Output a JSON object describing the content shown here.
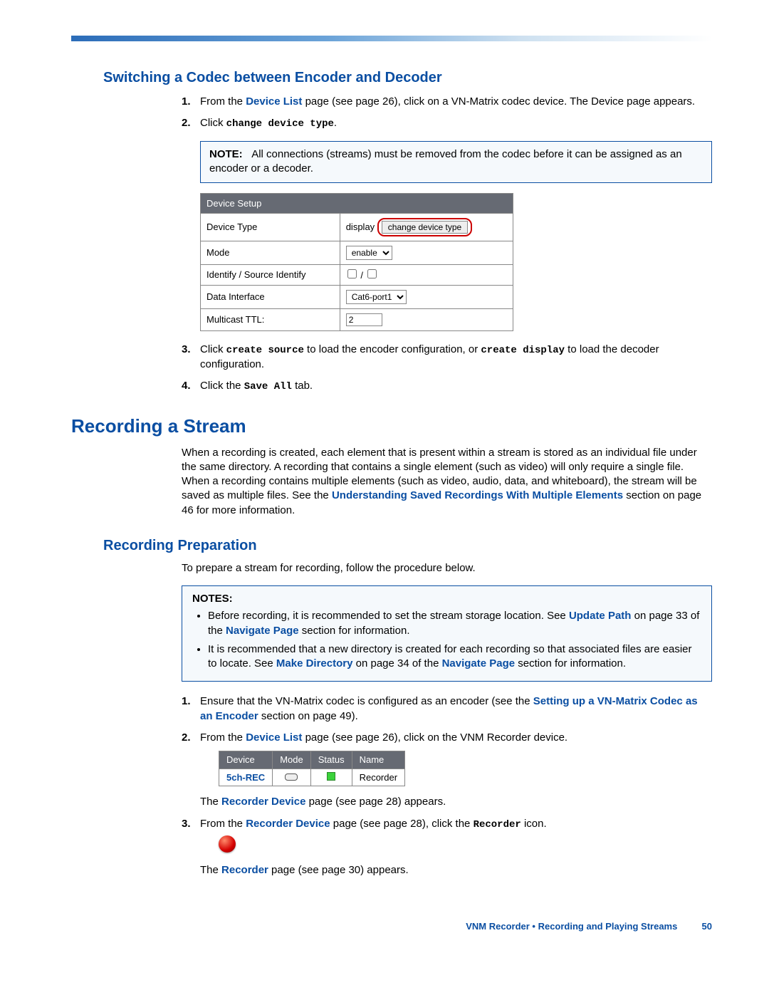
{
  "colors": {
    "heading_blue": "#0a4ea2",
    "link_blue": "#0a4ea2",
    "note_border": "#0a4ea2",
    "note_bg": "#f5f9fc",
    "table_header_bg": "#666a73",
    "table_header_fg": "#ffffff",
    "highlight_border": "#c00",
    "status_green": "#3bd23b",
    "sphere_red": "#d40000"
  },
  "section1": {
    "title": "Switching a Codec between Encoder and Decoder",
    "step1_pre": "From the ",
    "step1_link": "Device List",
    "step1_mid": " page (see page 26), click on a VN-Matrix codec device. The Device page appears.",
    "step2_pre": "Click ",
    "step2_cmd": "change device type",
    "step2_post": ".",
    "note_label": "NOTE:",
    "note_text": "All connections (streams) must be removed from the codec before it can be assigned as an encoder or a decoder.",
    "step3_pre": "Click ",
    "step3_cmd1": "create source",
    "step3_mid": " to load the encoder configuration, or ",
    "step3_cmd2": "create display",
    "step3_post": " to load the decoder configuration.",
    "step4_pre": "Click the ",
    "step4_cmd": "Save All",
    "step4_post": " tab."
  },
  "device_setup_table": {
    "header": "Device Setup",
    "rows": [
      {
        "label": "Device Type",
        "value_text": "display",
        "button": "change device type"
      },
      {
        "label": "Mode",
        "select_value": "enable"
      },
      {
        "label": "Identify / Source Identify",
        "checkboxes": true,
        "sep": " / "
      },
      {
        "label": "Data Interface",
        "select_value": "Cat6-port1"
      },
      {
        "label": "Multicast TTL:",
        "input_value": "2"
      }
    ]
  },
  "section2": {
    "title": "Recording a Stream",
    "intro_pre": "When a recording is created, each element that is present within a stream is stored as an individual file under the same directory. A recording that contains a single element (such as video) will only require a single file. When a recording contains multiple elements (such as video, audio, data, and whiteboard), the stream will be saved as multiple files. See the ",
    "intro_link": "Understanding Saved Recordings With Multiple Elements",
    "intro_post": " section on page 46 for more information."
  },
  "section3": {
    "title": "Recording Preparation",
    "intro": "To prepare a stream for recording, follow the procedure below.",
    "notes_label": "NOTES:",
    "note1_pre": "Before recording, it is recommended to set the stream storage location. See ",
    "note1_link": "Update Path",
    "note1_mid": " on page 33 of the ",
    "note1_link2": "Navigate Page",
    "note1_post": " section for information.",
    "note2_pre": "It is recommended that a new directory is created for each recording so that associated files are easier to locate. See ",
    "note2_link": "Make Directory",
    "note2_mid": " on page 34 of the ",
    "note2_link2": "Navigate Page",
    "note2_post": " section for information.",
    "step1_pre": "Ensure that the VN-Matrix codec is configured as an encoder (see the ",
    "step1_link": "Setting up a VN-Matrix Codec as an Encoder",
    "step1_post": " section on page 49).",
    "step2_pre": "From the ",
    "step2_link": "Device List",
    "step2_post": " page (see page 26), click on the VNM Recorder device.",
    "step2_after_pre": "The ",
    "step2_after_link": "Recorder Device",
    "step2_after_post": " page (see page 28) appears.",
    "step3_pre": "From the ",
    "step3_link": "Recorder Device",
    "step3_mid": " page (see page 28), click the ",
    "step3_cmd": "Recorder",
    "step3_post": " icon.",
    "step3_after_pre": "The ",
    "step3_after_link": "Recorder",
    "step3_after_post": " page (see page 30) appears."
  },
  "device_list_table": {
    "headers": [
      "Device",
      "Mode",
      "Status",
      "Name"
    ],
    "row": {
      "device": "5ch-REC",
      "name": "Recorder"
    }
  },
  "footer": {
    "text": "VNM Recorder • Recording and Playing Streams",
    "page": "50"
  }
}
